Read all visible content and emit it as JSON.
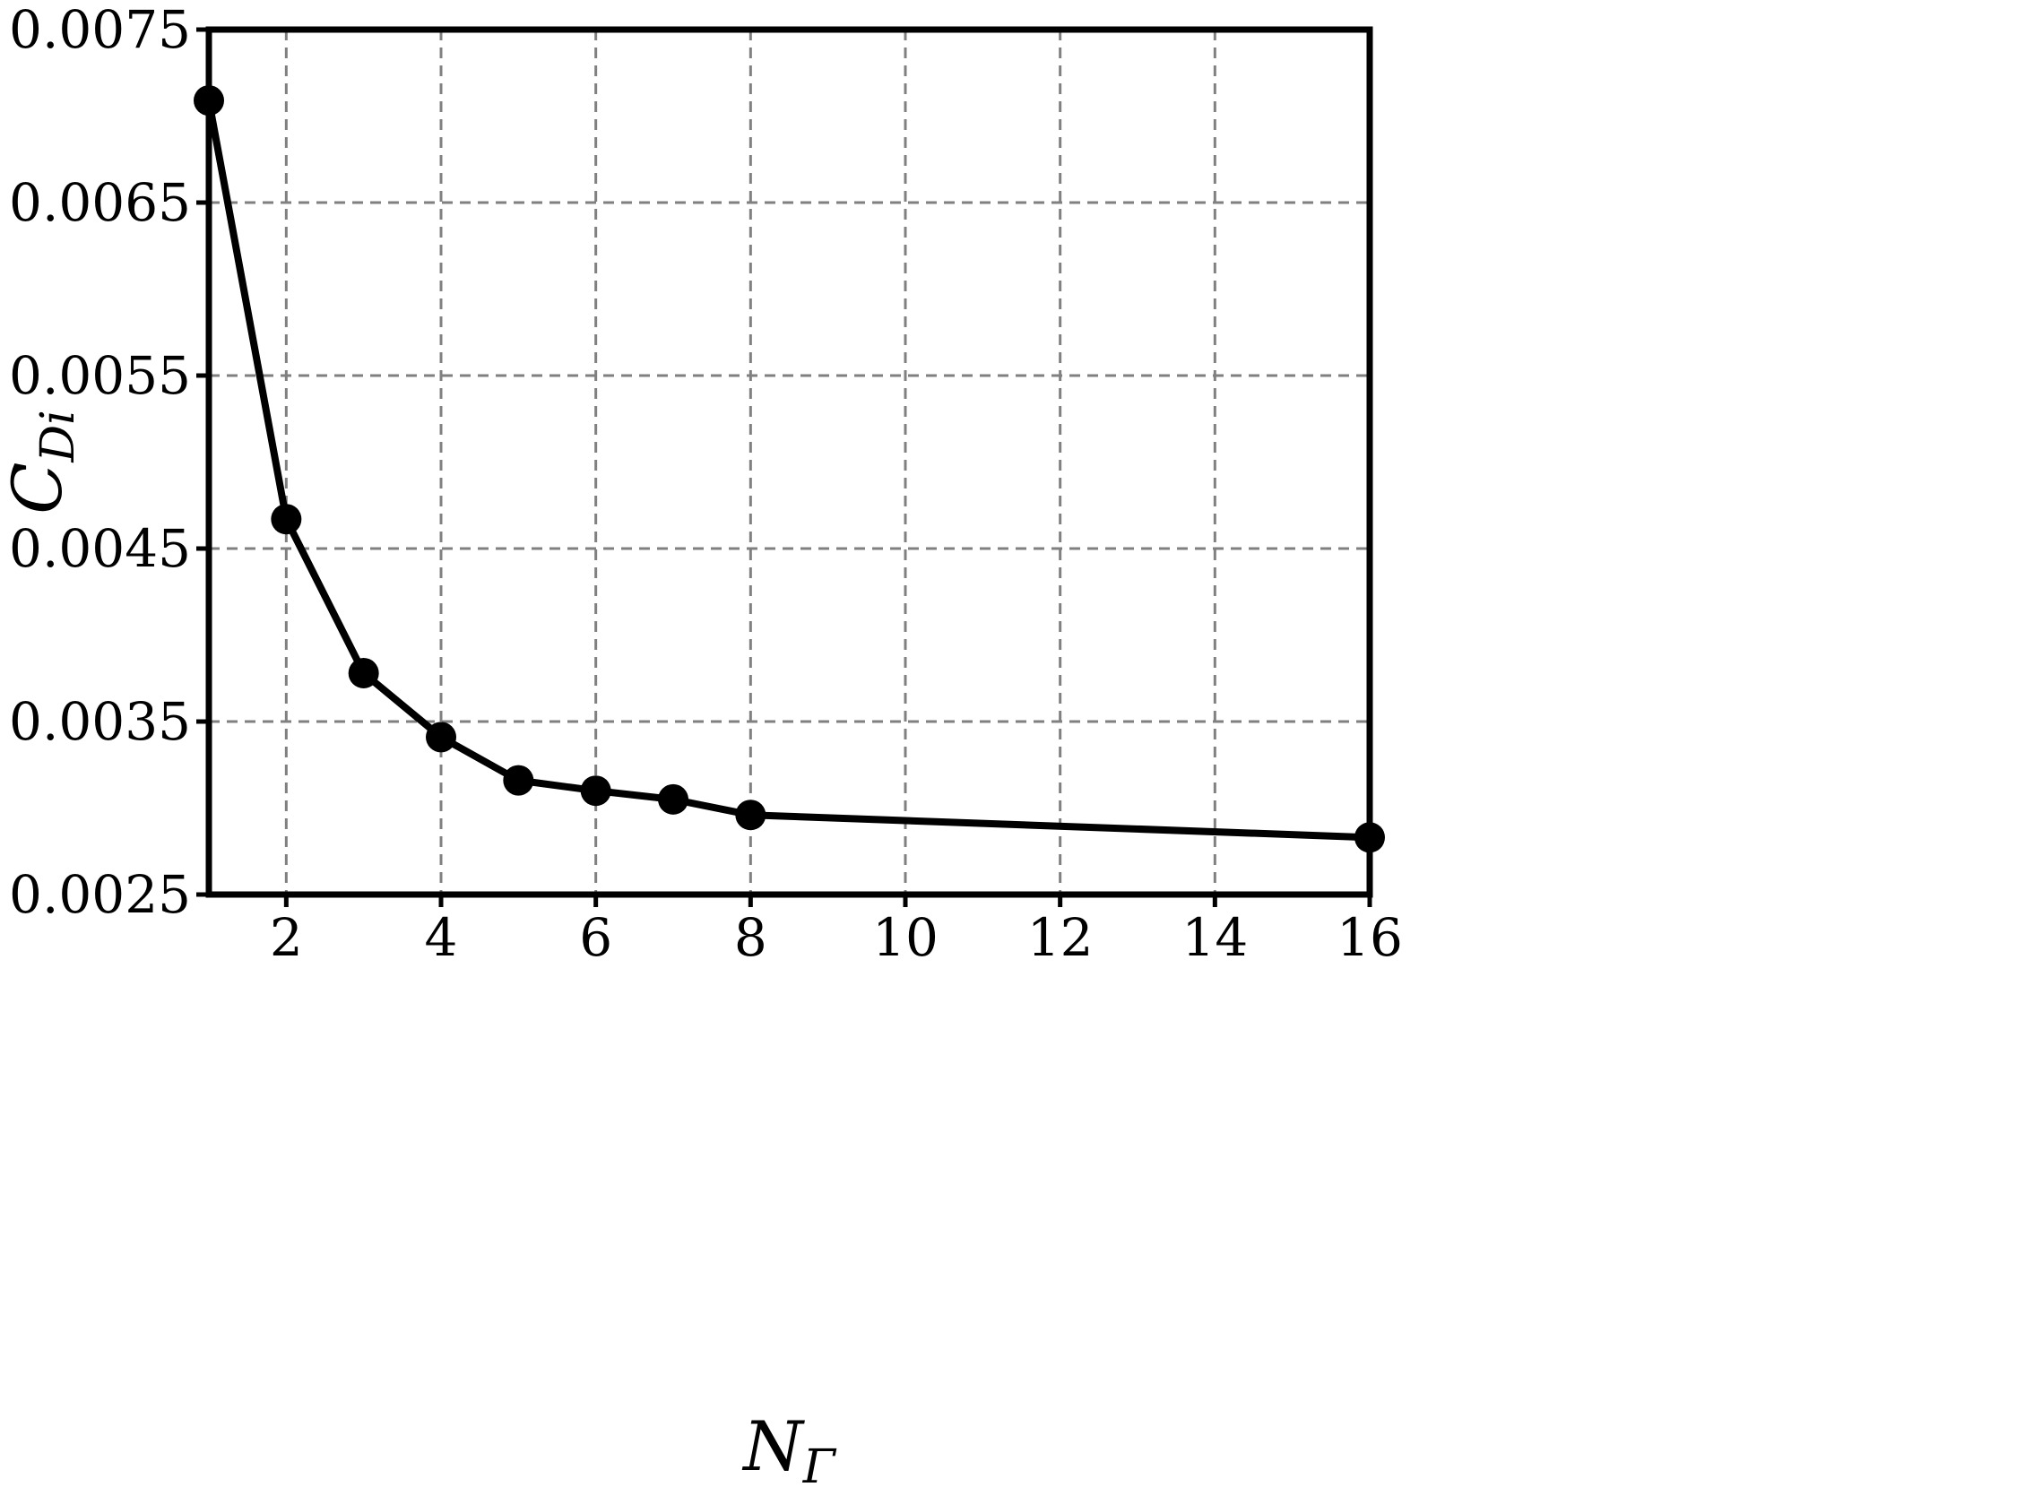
{
  "chart_data": {
    "type": "line",
    "xlabel": {
      "main": "N",
      "sub": "Γ"
    },
    "ylabel": {
      "main": "C",
      "sub": "Di"
    },
    "xlim": [
      1,
      16
    ],
    "ylim": [
      0.0025,
      0.0075
    ],
    "xticks": [
      2,
      4,
      6,
      8,
      10,
      12,
      14,
      16
    ],
    "xtick_labels": [
      "2",
      "4",
      "6",
      "8",
      "10",
      "12",
      "14",
      "16"
    ],
    "yticks": [
      0.0025,
      0.0035,
      0.0045,
      0.0055,
      0.0065,
      0.0075
    ],
    "ytick_labels": [
      "0.0025",
      "0.0035",
      "0.0045",
      "0.0055",
      "0.0065",
      "0.0075"
    ],
    "grid": true,
    "series": [
      {
        "color": "#000000",
        "marker": "circle",
        "x": [
          1,
          2,
          3,
          4,
          5,
          6,
          7,
          8,
          16
        ],
        "y": [
          0.00709,
          0.00467,
          0.00378,
          0.00341,
          0.00316,
          0.0031,
          0.00305,
          0.00296,
          0.00283
        ]
      }
    ]
  }
}
